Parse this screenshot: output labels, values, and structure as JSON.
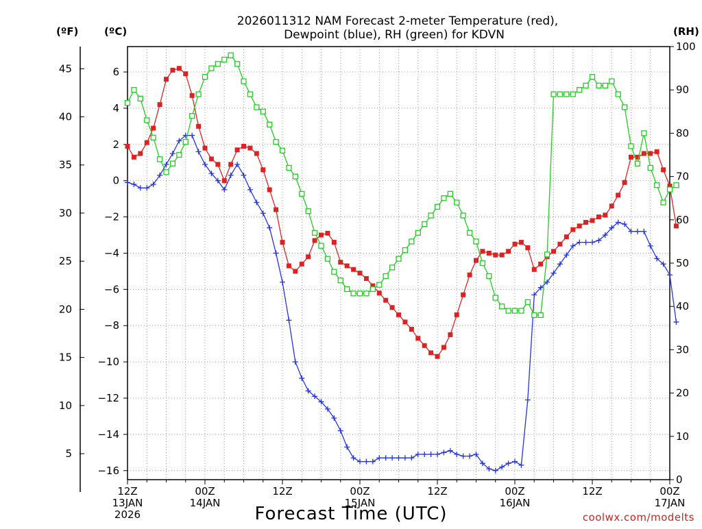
{
  "chart_data": {
    "type": "line",
    "title_line1": "2026011312 NAM Forecast 2-meter Temperature (red),",
    "title_line2": "Dewpoint (blue), RH (green) for KDVN",
    "xlabel": "Forecast Time (UTC)",
    "credit": "coolwx.com/modelts",
    "left_outer_axis": {
      "unit": "(ºF)",
      "ticks": [
        "5",
        "10",
        "15",
        "20",
        "25",
        "30",
        "35",
        "40",
        "45"
      ],
      "range": [
        2.3,
        47.3
      ]
    },
    "left_inner_axis": {
      "unit": "(ºC)",
      "ticks": [
        "−16",
        "−14",
        "−12",
        "−10",
        "−8",
        "−6",
        "−4",
        "−2",
        "0",
        "2",
        "4",
        "6"
      ],
      "range": [
        -16.5,
        7.4
      ]
    },
    "right_axis": {
      "unit": "(RH)",
      "ticks": [
        "0",
        "10",
        "20",
        "30",
        "40",
        "50",
        "60",
        "70",
        "80",
        "90",
        "100"
      ],
      "range": [
        0,
        100
      ]
    },
    "x_range_hours": [
      0,
      84
    ],
    "x_ticks": [
      {
        "hour": 0,
        "label1": "12Z",
        "label2": "13JAN",
        "label3": "2026"
      },
      {
        "hour": 12,
        "label1": "00Z",
        "label2": "14JAN",
        "label3": ""
      },
      {
        "hour": 24,
        "label1": "12Z",
        "label2": "",
        "label3": ""
      },
      {
        "hour": 36,
        "label1": "00Z",
        "label2": "15JAN",
        "label3": ""
      },
      {
        "hour": 48,
        "label1": "12Z",
        "label2": "",
        "label3": ""
      },
      {
        "hour": 60,
        "label1": "00Z",
        "label2": "16JAN",
        "label3": ""
      },
      {
        "hour": 72,
        "label1": "12Z",
        "label2": "",
        "label3": ""
      },
      {
        "hour": 84,
        "label1": "00Z",
        "label2": "17JAN",
        "label3": ""
      }
    ],
    "series": [
      {
        "name": "2-meter Temperature",
        "unit": "°C",
        "color": "#dd2222",
        "marker": "filled-square",
        "values": [
          1.9,
          1.3,
          1.5,
          2.1,
          2.9,
          4.2,
          5.6,
          6.1,
          6.2,
          5.9,
          4.7,
          3.0,
          1.8,
          1.2,
          0.9,
          0.0,
          0.9,
          1.7,
          1.9,
          1.8,
          1.5,
          0.6,
          -0.5,
          -1.6,
          -3.4,
          -4.7,
          -5.0,
          -4.6,
          -4.2,
          -3.3,
          -3.0,
          -2.9,
          -3.4,
          -4.5,
          -4.7,
          -4.9,
          -5.1,
          -5.4,
          -5.8,
          -6.2,
          -6.6,
          -7.0,
          -7.4,
          -7.8,
          -8.2,
          -8.7,
          -9.1,
          -9.5,
          -9.7,
          -9.2,
          -8.5,
          -7.4,
          -6.3,
          -5.2,
          -4.4,
          -3.9,
          -4.0,
          -4.1,
          -4.1,
          -3.9,
          -3.5,
          -3.4,
          -3.7,
          -4.9,
          -4.6,
          -4.2,
          -3.9,
          -3.5,
          -3.1,
          -2.7,
          -2.5,
          -2.3,
          -2.2,
          -2.0,
          -1.9,
          -1.4,
          -0.8,
          -0.1,
          1.3,
          1.3,
          1.5,
          1.5,
          1.6,
          0.6,
          -0.3,
          -2.5
        ]
      },
      {
        "name": "Dewpoint",
        "unit": "°C",
        "color": "#2233dd",
        "marker": "plus",
        "values": [
          -0.1,
          -0.2,
          -0.4,
          -0.4,
          -0.2,
          0.3,
          0.9,
          1.5,
          2.2,
          2.5,
          2.5,
          1.6,
          0.9,
          0.4,
          0.0,
          -0.5,
          0.3,
          0.9,
          0.3,
          -0.5,
          -1.2,
          -1.8,
          -2.6,
          -4.0,
          -5.6,
          -7.7,
          -10.0,
          -10.9,
          -11.6,
          -11.9,
          -12.2,
          -12.6,
          -13.1,
          -13.8,
          -14.7,
          -15.3,
          -15.5,
          -15.5,
          -15.5,
          -15.3,
          -15.3,
          -15.3,
          -15.3,
          -15.3,
          -15.3,
          -15.1,
          -15.1,
          -15.1,
          -15.1,
          -15.0,
          -14.9,
          -15.1,
          -15.2,
          -15.2,
          -15.1,
          -15.6,
          -15.9,
          -16.0,
          -15.8,
          -15.6,
          -15.5,
          -15.7,
          -12.1,
          -6.3,
          -5.9,
          -5.6,
          -5.1,
          -4.6,
          -4.1,
          -3.6,
          -3.4,
          -3.4,
          -3.4,
          -3.3,
          -3.0,
          -2.6,
          -2.3,
          -2.4,
          -2.8,
          -2.8,
          -2.8,
          -3.6,
          -4.3,
          -4.6,
          -5.2,
          -7.8
        ]
      },
      {
        "name": "RH",
        "unit": "%",
        "color": "#22cc22",
        "marker": "open-square",
        "values": [
          87,
          90,
          88,
          83,
          79,
          74,
          71,
          73,
          75,
          78,
          84,
          89,
          93,
          95,
          96,
          97,
          98,
          96,
          92,
          89,
          86,
          85,
          82,
          78,
          76,
          72,
          70,
          66,
          62,
          57,
          54,
          51,
          48,
          46,
          44,
          43,
          43,
          43,
          44,
          45,
          47,
          49,
          51,
          53,
          55,
          57,
          59,
          61,
          63,
          65,
          66,
          64,
          61,
          57,
          55,
          50,
          47,
          42,
          40,
          39,
          39,
          39,
          41,
          38,
          38,
          52,
          89,
          89,
          89,
          89,
          90,
          91,
          93,
          91,
          91,
          92,
          89,
          86,
          77,
          73,
          80,
          72,
          68,
          64,
          67,
          68
        ]
      }
    ]
  }
}
